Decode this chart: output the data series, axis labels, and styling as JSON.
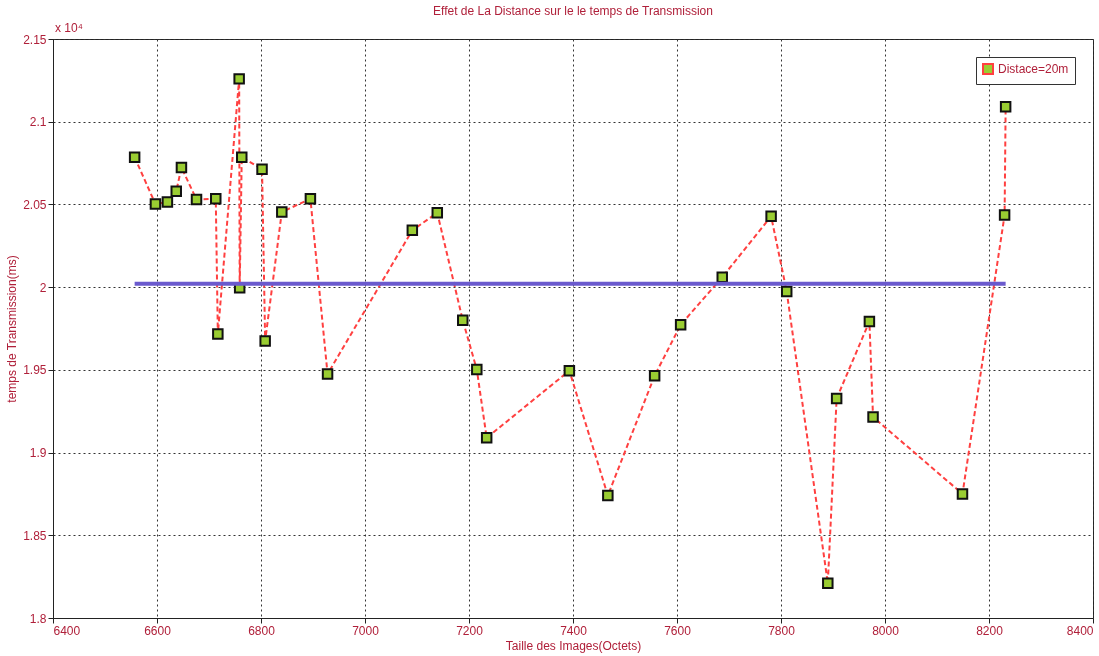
{
  "chart_data": {
    "type": "line",
    "title": "Effet de La Distance sur le le temps de Transmission",
    "xlabel": "Taille des Images(Octets)",
    "ylabel": "temps de Transmission(ms)",
    "annotations": [
      "x 10⁴"
    ],
    "series": [
      {
        "name": "Distace=20m",
        "color": "#ff4040",
        "marker": "square",
        "line_style": "dashed",
        "x": [
          6557,
          6597,
          6620,
          6637,
          6647,
          6676,
          6713,
          6717,
          6758,
          6759,
          6763,
          6802,
          6808,
          6840,
          6895,
          6928,
          7091,
          7139,
          7188,
          7215,
          7234,
          7393,
          7467,
          7557,
          7607,
          7687,
          7781,
          7811,
          7890,
          7907,
          7970,
          7977,
          8149,
          8230,
          8232
        ],
        "values": [
          2.0785,
          2.0502,
          2.0514,
          2.0579,
          2.0723,
          2.053,
          2.0534,
          1.9717,
          2.1259,
          1.9996,
          2.0785,
          2.0713,
          1.9675,
          2.0454,
          2.0534,
          1.9475,
          2.0344,
          2.0449,
          1.98,
          1.9502,
          1.9089,
          1.9495,
          1.874,
          1.9465,
          1.9772,
          2.006,
          2.0428,
          1.9973,
          1.821,
          1.9327,
          1.9792,
          1.9215,
          1.875,
          2.0436,
          2.1091
        ]
      },
      {
        "color": "#6a5acd",
        "marker": "none",
        "line_style": "solid",
        "x": [
          6557,
          8232
        ],
        "values": [
          2.002,
          2.002
        ]
      }
    ],
    "xlim": [
      6400,
      8400
    ],
    "xticks": [
      6400,
      6600,
      6800,
      7000,
      7200,
      7400,
      7600,
      7800,
      8000,
      8200,
      8400
    ],
    "ylim": [
      1.8,
      2.15
    ],
    "yticks": [
      1.8,
      1.85,
      1.9,
      1.95,
      2,
      2.05,
      2.1,
      2.15
    ],
    "grid": true,
    "legend": "top right"
  }
}
